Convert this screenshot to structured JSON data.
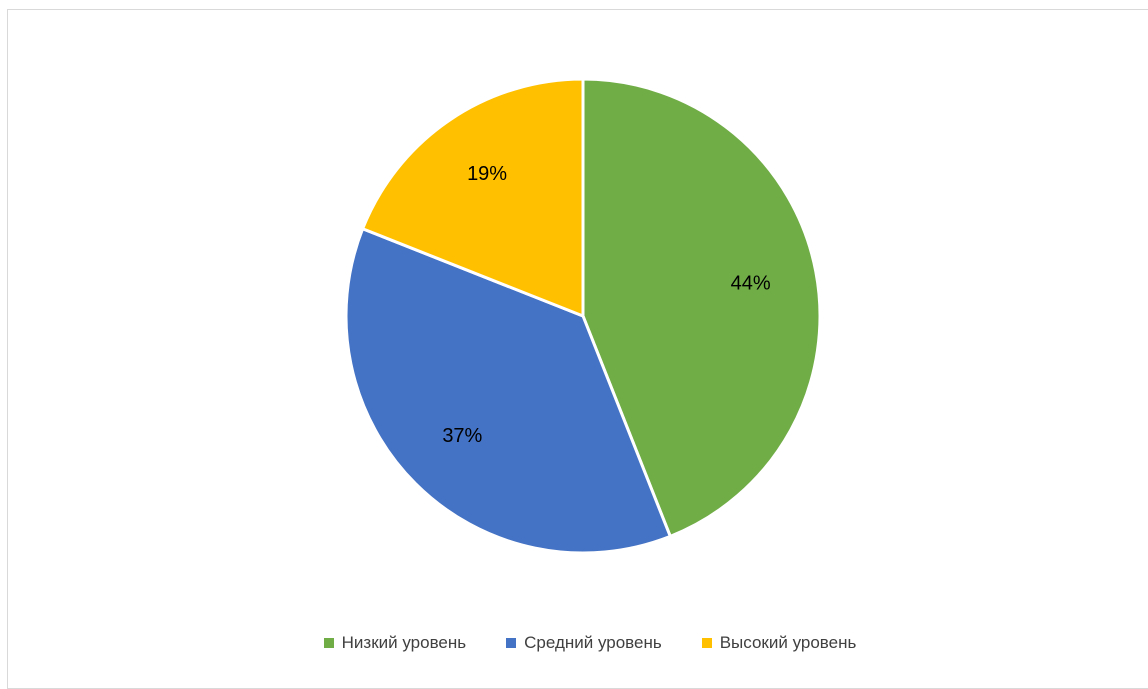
{
  "chart_data": {
    "type": "pie",
    "title": "",
    "categories": [
      "Низкий уровень",
      "Средний уровень",
      "Высокий уровень"
    ],
    "values": [
      44,
      37,
      19
    ],
    "labels": [
      "44%",
      "37%",
      "19%"
    ],
    "colors": [
      "#70AD47",
      "#4472C4",
      "#FFC000"
    ],
    "legend_position": "bottom"
  }
}
